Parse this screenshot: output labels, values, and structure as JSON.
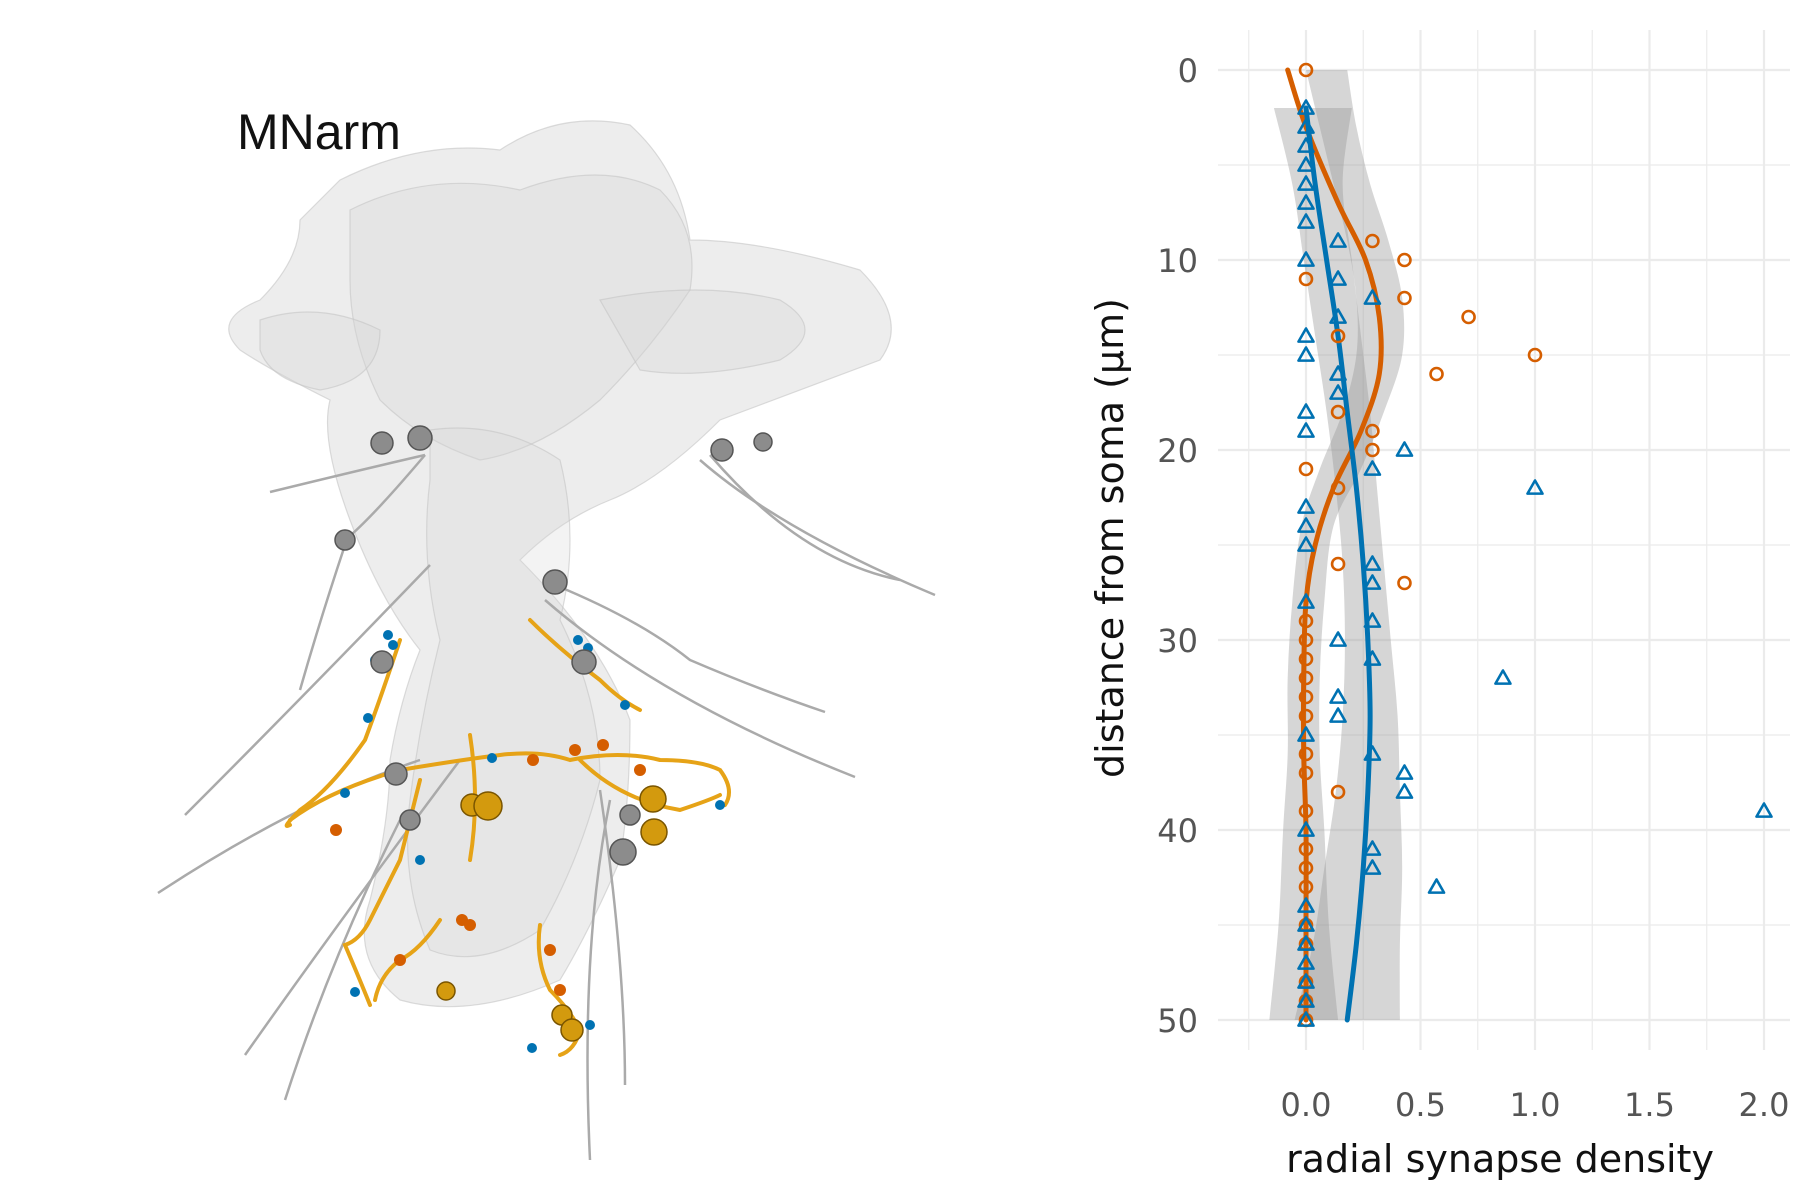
{
  "panel_label": "MNarm",
  "chart_data": {
    "type": "scatter",
    "title": "",
    "xlabel": "radial synapse density",
    "ylabel": "distance from soma (µm)",
    "xlim": [
      -0.27,
      2.08
    ],
    "ylim": [
      0,
      52
    ],
    "y_reversed": true,
    "grid": true,
    "x_ticks": [
      "0.0",
      "0.5",
      "1.0",
      "1.5",
      "2.0"
    ],
    "y_ticks": [
      "0",
      "10",
      "20",
      "30",
      "40",
      "50"
    ],
    "series": [
      {
        "marker": "circle",
        "color": "#d55e00",
        "points": [
          [
            0.0,
            0
          ],
          [
            0.29,
            9
          ],
          [
            0.43,
            10
          ],
          [
            0.0,
            11
          ],
          [
            0.43,
            12
          ],
          [
            0.71,
            13
          ],
          [
            0.14,
            14
          ],
          [
            1.0,
            15
          ],
          [
            0.57,
            16
          ],
          [
            0.14,
            18
          ],
          [
            0.29,
            19
          ],
          [
            0.29,
            20
          ],
          [
            0.0,
            21
          ],
          [
            0.14,
            22
          ],
          [
            0.14,
            26
          ],
          [
            0.43,
            27
          ],
          [
            0.0,
            29
          ],
          [
            0.0,
            30
          ],
          [
            0.0,
            31
          ],
          [
            0.0,
            32
          ],
          [
            0.0,
            33
          ],
          [
            0.0,
            34
          ],
          [
            0.0,
            36
          ],
          [
            0.0,
            37
          ],
          [
            0.14,
            38
          ],
          [
            0.0,
            39
          ],
          [
            0.0,
            41
          ],
          [
            0.0,
            42
          ],
          [
            0.0,
            43
          ],
          [
            0.0,
            45
          ],
          [
            0.0,
            46
          ],
          [
            0.0,
            48
          ],
          [
            0.0,
            49
          ],
          [
            0.0,
            50
          ]
        ],
        "fit": [
          [
            -0.08,
            0
          ],
          [
            0.0,
            3
          ],
          [
            0.14,
            7
          ],
          [
            0.26,
            10
          ],
          [
            0.32,
            13
          ],
          [
            0.32,
            16
          ],
          [
            0.24,
            19
          ],
          [
            0.12,
            22
          ],
          [
            0.04,
            25
          ],
          [
            0.0,
            28
          ],
          [
            -0.01,
            32
          ],
          [
            -0.01,
            36
          ],
          [
            0.0,
            40
          ],
          [
            0.0,
            45
          ],
          [
            0.0,
            50
          ]
        ],
        "band": [
          [
            0.0,
            0,
            0.18
          ],
          [
            0.06,
            3,
            0.22
          ],
          [
            0.12,
            6,
            0.28
          ],
          [
            0.18,
            9,
            0.36
          ],
          [
            0.22,
            12,
            0.42
          ],
          [
            0.22,
            15,
            0.42
          ],
          [
            0.16,
            18,
            0.34
          ],
          [
            0.06,
            21,
            0.24
          ],
          [
            -0.02,
            24,
            0.12
          ],
          [
            -0.06,
            28,
            0.08
          ],
          [
            -0.08,
            32,
            0.06
          ],
          [
            -0.08,
            36,
            0.06
          ],
          [
            -0.1,
            40,
            0.08
          ],
          [
            -0.12,
            45,
            0.1
          ],
          [
            -0.16,
            50,
            0.14
          ]
        ]
      },
      {
        "marker": "triangle",
        "color": "#0072b2",
        "points": [
          [
            0.0,
            2
          ],
          [
            0.0,
            3
          ],
          [
            0.0,
            4
          ],
          [
            0.0,
            5
          ],
          [
            0.0,
            6
          ],
          [
            0.0,
            7
          ],
          [
            0.0,
            8
          ],
          [
            0.14,
            9
          ],
          [
            0.0,
            10
          ],
          [
            0.14,
            11
          ],
          [
            0.29,
            12
          ],
          [
            0.14,
            13
          ],
          [
            0.0,
            14
          ],
          [
            0.0,
            15
          ],
          [
            0.14,
            16
          ],
          [
            0.14,
            17
          ],
          [
            0.0,
            18
          ],
          [
            0.0,
            19
          ],
          [
            0.43,
            20
          ],
          [
            0.29,
            21
          ],
          [
            1.0,
            22
          ],
          [
            0.0,
            23
          ],
          [
            0.0,
            24
          ],
          [
            0.0,
            25
          ],
          [
            0.29,
            26
          ],
          [
            0.29,
            27
          ],
          [
            0.0,
            28
          ],
          [
            0.29,
            29
          ],
          [
            0.14,
            30
          ],
          [
            0.29,
            31
          ],
          [
            0.86,
            32
          ],
          [
            0.14,
            33
          ],
          [
            0.14,
            34
          ],
          [
            0.0,
            35
          ],
          [
            0.29,
            36
          ],
          [
            0.43,
            37
          ],
          [
            0.43,
            38
          ],
          [
            2.0,
            39
          ],
          [
            0.0,
            40
          ],
          [
            0.29,
            41
          ],
          [
            0.29,
            42
          ],
          [
            0.57,
            43
          ],
          [
            0.0,
            44
          ],
          [
            0.0,
            45
          ],
          [
            0.0,
            46
          ],
          [
            0.0,
            47
          ],
          [
            0.0,
            48
          ],
          [
            0.0,
            49
          ],
          [
            0.0,
            50
          ]
        ],
        "fit": [
          [
            0.0,
            2
          ],
          [
            0.04,
            6
          ],
          [
            0.09,
            10
          ],
          [
            0.14,
            14
          ],
          [
            0.18,
            18
          ],
          [
            0.22,
            22
          ],
          [
            0.25,
            26
          ],
          [
            0.27,
            30
          ],
          [
            0.28,
            34
          ],
          [
            0.27,
            38
          ],
          [
            0.25,
            42
          ],
          [
            0.22,
            46
          ],
          [
            0.18,
            50
          ]
        ],
        "band": [
          [
            -0.14,
            2,
            0.2
          ],
          [
            -0.06,
            6,
            0.16
          ],
          [
            -0.01,
            10,
            0.2
          ],
          [
            0.04,
            14,
            0.24
          ],
          [
            0.09,
            18,
            0.28
          ],
          [
            0.13,
            22,
            0.31
          ],
          [
            0.16,
            26,
            0.34
          ],
          [
            0.17,
            30,
            0.37
          ],
          [
            0.16,
            34,
            0.4
          ],
          [
            0.13,
            38,
            0.41
          ],
          [
            0.08,
            42,
            0.42
          ],
          [
            0.03,
            46,
            0.41
          ],
          [
            -0.05,
            50,
            0.41
          ]
        ]
      }
    ]
  }
}
